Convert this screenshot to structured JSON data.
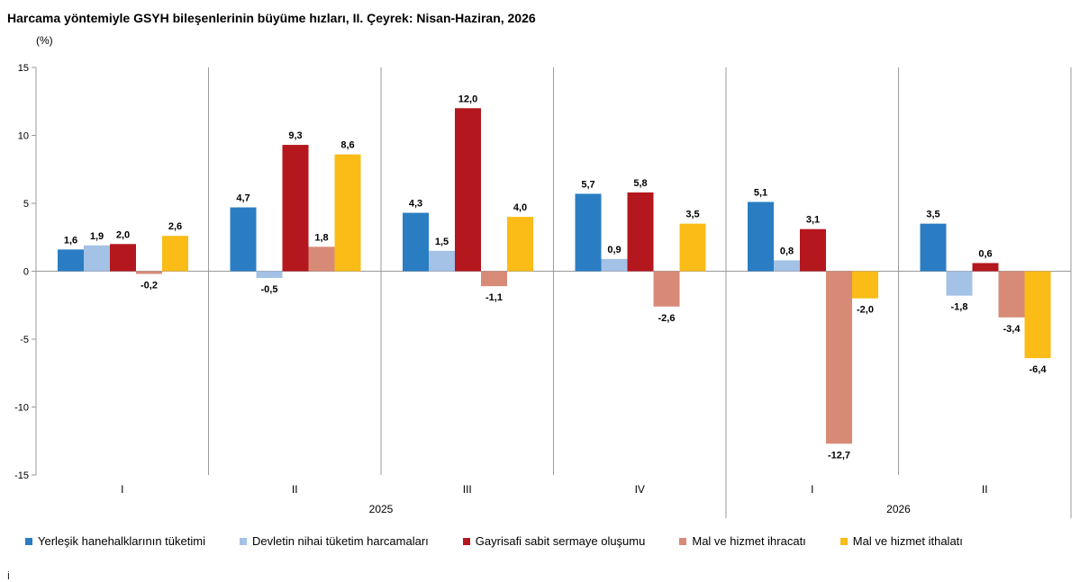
{
  "title": "Harcama yöntemiyle GSYH bileşenlerinin büyüme hızları, II. Çeyrek: Nisan-Haziran, 2026",
  "unit": "(%)",
  "footer_mark": "İ",
  "chart_data": {
    "type": "bar",
    "ylim": [
      -15,
      15
    ],
    "yticks": [
      15,
      10,
      5,
      0,
      -5,
      -10,
      -15
    ],
    "ytick_labels": [
      "15",
      "10",
      "5",
      "0",
      "-5",
      "-10",
      "-15"
    ],
    "categories": [
      "I",
      "II",
      "III",
      "IV",
      "I",
      "II"
    ],
    "years": [
      {
        "label": "2025",
        "quarters": 4
      },
      {
        "label": "2026",
        "quarters": 2
      }
    ],
    "series": [
      {
        "name": "Yerleşik hanehalklarının tüketimi",
        "color": "#2b7dc3",
        "values": [
          1.6,
          4.7,
          4.3,
          5.7,
          5.1,
          3.5
        ],
        "labels": [
          "1,6",
          "4,7",
          "4,3",
          "5,7",
          "5,1",
          "3,5"
        ]
      },
      {
        "name": "Devletin nihai tüketim harcamaları",
        "color": "#a4c1e6",
        "values": [
          1.9,
          -0.5,
          1.5,
          0.9,
          0.8,
          -1.8
        ],
        "labels": [
          "1,9",
          "-0,5",
          "1,5",
          "0,9",
          "0,8",
          "-1,8"
        ]
      },
      {
        "name": "Gayrisafi sabit sermaye oluşumu",
        "color": "#b4171d",
        "values": [
          2.0,
          9.3,
          12.0,
          5.8,
          3.1,
          0.6
        ],
        "labels": [
          "2,0",
          "9,3",
          "12,0",
          "5,8",
          "3,1",
          "0,6"
        ]
      },
      {
        "name": "Mal ve hizmet ihracatı",
        "color": "#d78b77",
        "values": [
          -0.2,
          1.8,
          -1.1,
          -2.6,
          -12.7,
          -3.4
        ],
        "labels": [
          "-0,2",
          "1,8",
          "-1,1",
          "-2,6",
          "-12,7",
          "-3,4"
        ]
      },
      {
        "name": "Mal ve hizmet ithalatı",
        "color": "#fbbc18",
        "values": [
          2.6,
          8.6,
          4.0,
          3.5,
          -2.0,
          -6.4
        ],
        "labels": [
          "2,6",
          "8,6",
          "4,0",
          "3,5",
          "-2,0",
          "-6,4"
        ]
      }
    ],
    "grid": false,
    "legend": "bottom"
  }
}
